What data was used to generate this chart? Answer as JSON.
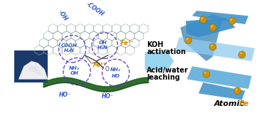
{
  "background_color": "#ffffff",
  "arrow_color": "#87CEEB",
  "arrow_text1": "KOH",
  "arrow_text2": "activation",
  "arrow_text3": "Acid/water",
  "arrow_text4": "leaching",
  "atomic_fe_label": "Atomic ",
  "atomic_fe_fe": "Fe",
  "fe3plus_color": "#CC8800",
  "circle_color": "#5533BB",
  "graphene_color": "#99AAAA",
  "cellulose_color": "#1A5C1A",
  "gold_dot_color": "#C8920A",
  "gold_highlight": "#E8C050",
  "text_color_blue": "#3355CC",
  "ribbon1_color": "#3A8EC8",
  "ribbon2_color": "#90CCEE",
  "ribbon3_color": "#5AAAD8",
  "ribbon4_color": "#2878B0",
  "photo_bg": "#1A3A6A",
  "label_fontsize": 5.5,
  "arrow_fontsize": 7,
  "atomic_fontsize": 8
}
